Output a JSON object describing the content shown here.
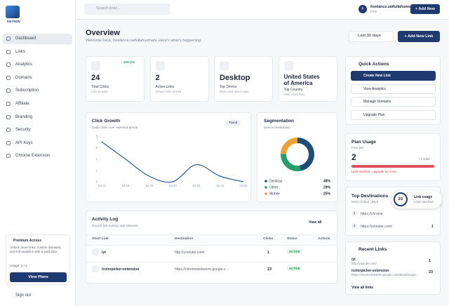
{
  "sidebar": {
    "logo": "KEYNOU",
    "nav": [
      "Dashboard",
      "Links",
      "Analytics",
      "Domains",
      "Subscription",
      "Affiliate",
      "Branding",
      "Security",
      "API Keys",
      "Chrome Extension"
    ],
    "premium": {
      "title": "Premium Access",
      "text": "Unlock more links, custom domains, and full analytics with a paid plan.",
      "usage": "Usage: 2 / 2",
      "button": "View Plans"
    },
    "sign_out": "Sign out"
  },
  "topbar": {
    "search": "Search links...",
    "avatar": "F",
    "user": "freelance.saifullahums...",
    "plan": "Free",
    "add": "+ Add New"
  },
  "header": {
    "title": "Overview",
    "subtitle": "Welcome back, freelance.saifullahusmani. Here's what's happening.",
    "range": "Last 30 days",
    "add": "+ Add New Link"
  },
  "stats": [
    {
      "value": "24",
      "label": "Total Clicks",
      "note": "Last 30 days",
      "change": "↑ 100.0%"
    },
    {
      "value": "2",
      "label": "Active Links",
      "note": "Unique links clicked"
    },
    {
      "value": "Desktop",
      "label": "Top Device",
      "note": "Most used device type"
    },
    {
      "value": "United States of America",
      "label": "Top Country",
      "note": "Most clicks from"
    }
  ],
  "click_growth": {
    "type": "line",
    "title": "Click Growth",
    "subtitle": "Daily clicks over selected period",
    "button": "Trend",
    "categories": [
      "Jul 14",
      "Jul 16",
      "Jul 18",
      "Jul 20",
      "Jul 22",
      "Jul 24",
      "Jul 26"
    ],
    "values": [
      7,
      4,
      1,
      0,
      3,
      1,
      0
    ],
    "color": "#2f5d8c",
    "ylim": [
      0,
      8
    ],
    "yticks": [
      0,
      2,
      4,
      6,
      8
    ],
    "grid": false
  },
  "segmentation": {
    "type": "pie",
    "title": "Segmentation",
    "subtitle": "Device breakdown",
    "categories": [
      "Desktop",
      "Other",
      "Mobile"
    ],
    "values": [
      48,
      29,
      25
    ],
    "value_labels": [
      "48%",
      "29%",
      "25%"
    ],
    "colors": [
      "#1f4e79",
      "#22a06b",
      "#f0a030"
    ]
  },
  "quick_actions": {
    "title": "Quick Actions",
    "items": [
      "Create New Link",
      "View Analytics",
      "Manage Domains",
      "Upgrade Plan"
    ]
  },
  "plan": {
    "title": "Plan Usage",
    "tier": "Free tier",
    "used": 2,
    "limit": {
      "value": 2,
      "label": "/ 2 links"
    },
    "note": "Limit reached - upgrade for more"
  },
  "destinations": {
    "title": "Top Destinations",
    "subtitle": "Most clicked URLs",
    "rows": [
      {
        "rank": "1",
        "url": "https://chrome"
      },
      {
        "rank": "2",
        "url": "https://youtube.com/",
        "count": "1"
      }
    ]
  },
  "popup": {
    "ratio": "2/2",
    "title": "Link usage",
    "note": "Limit reached"
  },
  "recent": {
    "title": "Recent Links",
    "rows": [
      {
        "short": "/yt",
        "url": "http://youtube.com/",
        "count": "1"
      },
      {
        "short": "/colorpicker-extension",
        "url": "https://chromewebstore.google.com/detail/imagec...",
        "count": "23"
      }
    ],
    "view_all": "View all links"
  },
  "activity": {
    "title": "Activity Log",
    "subtitle": "Recent link activity and statuses",
    "view_all": "View all",
    "columns": [
      "Short Link",
      "Destination",
      "Clicks",
      "Status",
      "Actions"
    ],
    "rows": [
      {
        "short": "/yt",
        "dest": "http://youtube.com/",
        "clicks": "1",
        "status": "ACTIVE"
      },
      {
        "short": "/colorpicker-extension",
        "dest": "https://chromewebstore.google.c...",
        "clicks": "23",
        "status": "ACTIVE"
      }
    ]
  }
}
